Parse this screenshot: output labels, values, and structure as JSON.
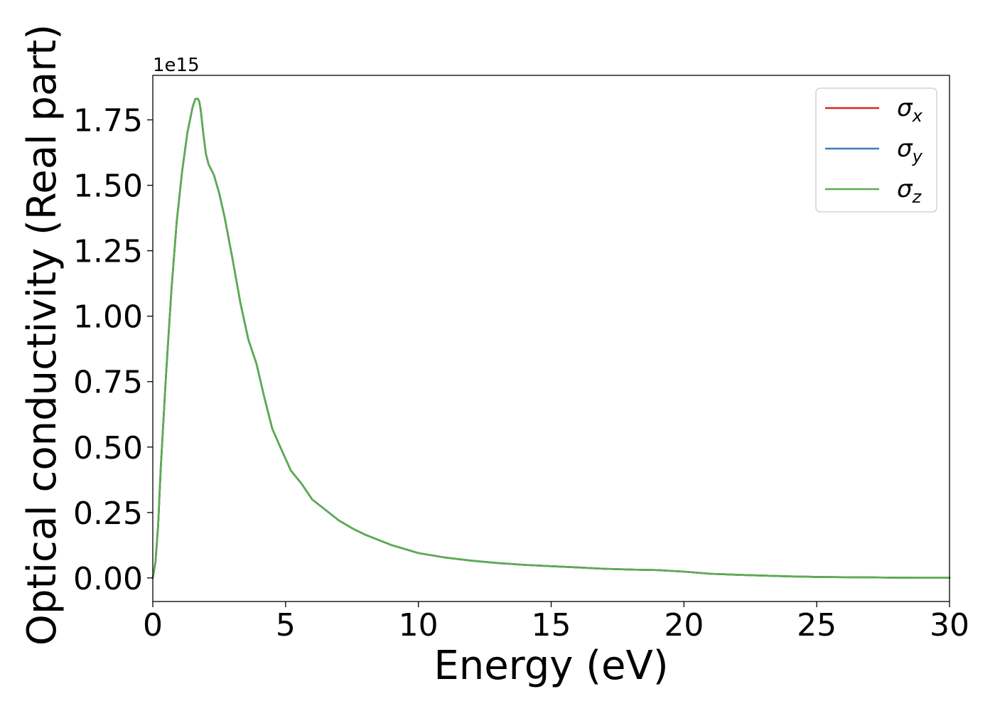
{
  "chart_data": {
    "type": "line",
    "xlabel": "Energy (eV)",
    "ylabel": "Optical conductivity (Real part)",
    "y_offset_label": "1e15",
    "y_scale": 1000000000000000.0,
    "xlim": [
      0,
      30
    ],
    "ylim": [
      -0.09,
      1.92
    ],
    "x_ticks": [
      0,
      5,
      10,
      15,
      20,
      25,
      30
    ],
    "x_tick_labels": [
      "0",
      "5",
      "10",
      "15",
      "20",
      "25",
      "30"
    ],
    "y_ticks": [
      0.0,
      0.25,
      0.5,
      0.75,
      1.0,
      1.25,
      1.5,
      1.75
    ],
    "y_tick_labels": [
      "0.00",
      "0.25",
      "0.50",
      "0.75",
      "1.00",
      "1.25",
      "1.50",
      "1.75"
    ],
    "grid": false,
    "legend_position": "top-right",
    "x": [
      0,
      0.1,
      0.2,
      0.3,
      0.5,
      0.7,
      0.9,
      1.1,
      1.3,
      1.5,
      1.6,
      1.7,
      1.75,
      1.8,
      1.9,
      2.0,
      2.1,
      2.2,
      2.3,
      2.5,
      2.7,
      3.0,
      3.3,
      3.6,
      3.9,
      4.2,
      4.5,
      4.8,
      5.2,
      5.6,
      6.0,
      6.5,
      7.0,
      7.5,
      8.0,
      9.0,
      10.0,
      11.0,
      12.0,
      13.0,
      14.0,
      15.0,
      16.0,
      17.0,
      18.0,
      19.0,
      20.0,
      21.0,
      22.0,
      23.0,
      24.0,
      25.0,
      26.0,
      27.0,
      28.0,
      29.0,
      30.0
    ],
    "series": [
      {
        "name": "σ_x",
        "symbol": "σ",
        "subscript": "x",
        "color": "#d62728"
      },
      {
        "name": "σ_y",
        "symbol": "σ",
        "subscript": "y",
        "color": "#3a7dbf"
      },
      {
        "name": "σ_z",
        "symbol": "σ",
        "subscript": "z",
        "color": "#5aae4e"
      }
    ],
    "y": [
      0.0,
      0.06,
      0.2,
      0.42,
      0.78,
      1.1,
      1.36,
      1.55,
      1.7,
      1.8,
      1.83,
      1.83,
      1.82,
      1.79,
      1.7,
      1.62,
      1.58,
      1.56,
      1.54,
      1.47,
      1.38,
      1.22,
      1.05,
      0.91,
      0.82,
      0.69,
      0.57,
      0.5,
      0.41,
      0.36,
      0.3,
      0.26,
      0.22,
      0.19,
      0.165,
      0.125,
      0.095,
      0.078,
      0.066,
      0.057,
      0.05,
      0.045,
      0.04,
      0.035,
      0.032,
      0.03,
      0.024,
      0.016,
      0.012,
      0.009,
      0.006,
      0.004,
      0.003,
      0.002,
      0.001,
      0.0005,
      0.0005
    ]
  }
}
